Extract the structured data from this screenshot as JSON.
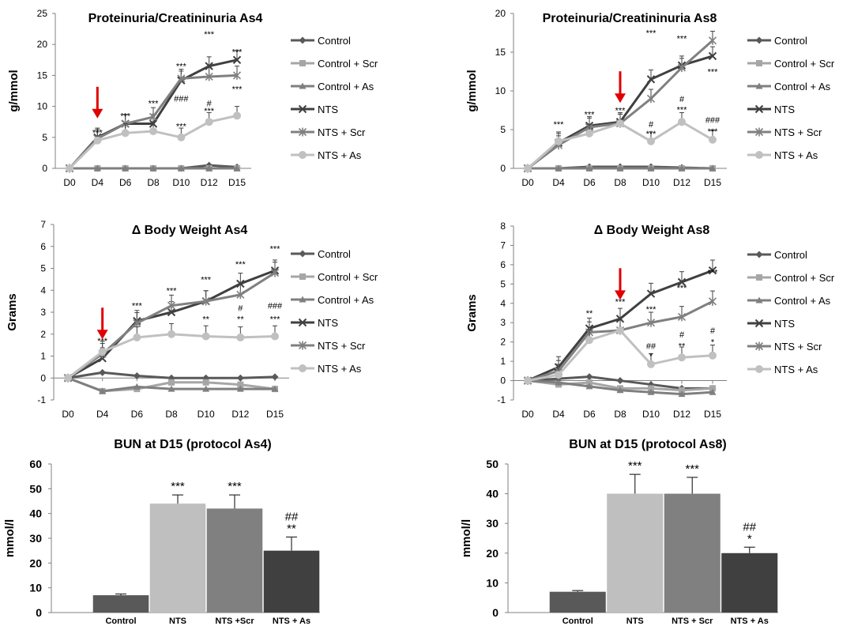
{
  "chart_data": [
    {
      "type": "line",
      "title": "Proteinuria/Creatininuria As4",
      "ylabel": "g/mmol",
      "categories": [
        "D0",
        "D4",
        "D6",
        "D8",
        "D10",
        "D12",
        "D15"
      ],
      "ylim": [
        0,
        25
      ],
      "yticks": [
        0,
        5,
        10,
        15,
        20,
        25
      ],
      "arrow_at": "D4",
      "series": [
        {
          "name": "Control",
          "values": [
            0,
            0,
            0,
            0,
            0,
            0.5,
            0.2
          ]
        },
        {
          "name": "Control + Scr",
          "values": [
            0,
            0,
            0,
            0,
            0,
            0,
            0
          ]
        },
        {
          "name": "Control + As",
          "values": [
            0,
            0,
            0,
            0,
            0,
            0,
            0
          ]
        },
        {
          "name": "NTS",
          "values": [
            0,
            5,
            7.2,
            7.2,
            14.2,
            16.5,
            17.5
          ]
        },
        {
          "name": "NTS + Scr",
          "values": [
            0,
            4.8,
            7.2,
            8.3,
            14.5,
            14.8,
            15
          ]
        },
        {
          "name": "NTS + As",
          "values": [
            0,
            4.5,
            5.7,
            6,
            5,
            7.5,
            8.5
          ]
        }
      ],
      "annotations": [
        {
          "x": "D4",
          "y": 5.8,
          "text": "***"
        },
        {
          "x": "D6",
          "y": 8.5,
          "text": "***"
        },
        {
          "x": "D8",
          "y": 10.5,
          "text": "***"
        },
        {
          "x": "D10",
          "y": 16.5,
          "text": "***"
        },
        {
          "x": "D10",
          "y": 11.3,
          "text": "###"
        },
        {
          "x": "D10",
          "y": 6.8,
          "text": "***"
        },
        {
          "x": "D12",
          "y": 21.7,
          "text": "***"
        },
        {
          "x": "D12",
          "y": 10.5,
          "text": "#"
        },
        {
          "x": "D12",
          "y": 9.3,
          "text": "***"
        },
        {
          "x": "D15",
          "y": 18.8,
          "text": "***"
        },
        {
          "x": "D15",
          "y": 12.8,
          "text": "***"
        }
      ]
    },
    {
      "type": "line",
      "title": "Proteinuria/Creatininuria As8",
      "ylabel": "g/mmol",
      "categories": [
        "D0",
        "D4",
        "D6",
        "D8",
        "D10",
        "D12",
        "D15"
      ],
      "ylim": [
        0,
        20
      ],
      "yticks": [
        0,
        5,
        10,
        15,
        20
      ],
      "arrow_at": "D8",
      "series": [
        {
          "name": "Control",
          "values": [
            0,
            0,
            0.2,
            0.2,
            0.2,
            0.1,
            0
          ]
        },
        {
          "name": "Control + Scr",
          "values": [
            0,
            0,
            0,
            0,
            0,
            0,
            0
          ]
        },
        {
          "name": "Control + As",
          "values": [
            0,
            0,
            0,
            0,
            0,
            0,
            0
          ]
        },
        {
          "name": "NTS",
          "values": [
            0,
            3.3,
            5.5,
            6,
            11.5,
            13.3,
            14.5
          ]
        },
        {
          "name": "NTS + Scr",
          "values": [
            0,
            3,
            5.3,
            5.8,
            9,
            13,
            16.5
          ]
        },
        {
          "name": "NTS + As",
          "values": [
            0,
            3.5,
            4.5,
            5.8,
            3.5,
            6,
            3.7
          ]
        }
      ],
      "annotations": [
        {
          "x": "D4",
          "y": 5.7,
          "text": "***"
        },
        {
          "x": "D6",
          "y": 7.0,
          "text": "***"
        },
        {
          "x": "D8",
          "y": 7.5,
          "text": "***"
        },
        {
          "x": "D10",
          "y": 17.5,
          "text": "***"
        },
        {
          "x": "D10",
          "y": 5.7,
          "text": "#"
        },
        {
          "x": "D10",
          "y": 4.5,
          "text": "***"
        },
        {
          "x": "D12",
          "y": 16.8,
          "text": "***"
        },
        {
          "x": "D12",
          "y": 9.0,
          "text": "#"
        },
        {
          "x": "D12",
          "y": 7.6,
          "text": "***"
        },
        {
          "x": "D15",
          "y": 12.5,
          "text": "***"
        },
        {
          "x": "D15",
          "y": 6.3,
          "text": "###"
        },
        {
          "x": "D15",
          "y": 4.8,
          "text": "***"
        }
      ]
    },
    {
      "type": "line",
      "title": "Δ Body Weight As4",
      "ylabel": "Grams",
      "categories": [
        "D0",
        "D4",
        "D6",
        "D8",
        "D10",
        "D12",
        "D15"
      ],
      "ylim": [
        -1,
        7
      ],
      "yticks": [
        -1,
        0,
        1,
        2,
        3,
        4,
        5,
        6,
        7
      ],
      "arrow_at": "D4",
      "series": [
        {
          "name": "Control",
          "values": [
            0,
            0.25,
            0.1,
            0,
            0,
            0,
            0.05
          ]
        },
        {
          "name": "Control + Scr",
          "values": [
            0,
            -0.6,
            -0.5,
            -0.2,
            -0.2,
            -0.3,
            -0.5
          ]
        },
        {
          "name": "Control + As",
          "values": [
            0,
            -0.6,
            -0.4,
            -0.5,
            -0.5,
            -0.5,
            -0.5
          ]
        },
        {
          "name": "NTS",
          "values": [
            0,
            0.9,
            2.6,
            3.0,
            3.5,
            4.3,
            4.9
          ]
        },
        {
          "name": "NTS + Scr",
          "values": [
            0,
            1.1,
            2.5,
            3.3,
            3.5,
            3.8,
            4.8
          ]
        },
        {
          "name": "NTS + As",
          "values": [
            0,
            1.2,
            1.85,
            2.0,
            1.9,
            1.85,
            1.9
          ]
        }
      ],
      "annotations": [
        {
          "x": "D4",
          "y": 1.7,
          "text": "***"
        },
        {
          "x": "D6",
          "y": 3.3,
          "text": "***"
        },
        {
          "x": "D8",
          "y": 4.0,
          "text": "***"
        },
        {
          "x": "D10",
          "y": 4.5,
          "text": "***"
        },
        {
          "x": "D10",
          "y": 2.7,
          "text": "**"
        },
        {
          "x": "D12",
          "y": 5.2,
          "text": "***"
        },
        {
          "x": "D12",
          "y": 3.2,
          "text": "#"
        },
        {
          "x": "D12",
          "y": 2.7,
          "text": "**"
        },
        {
          "x": "D15",
          "y": 5.9,
          "text": "***"
        },
        {
          "x": "D15",
          "y": 3.3,
          "text": "###"
        },
        {
          "x": "D15",
          "y": 2.7,
          "text": "***"
        }
      ]
    },
    {
      "type": "line",
      "title": "Δ Body Weight As8",
      "ylabel": "Grams",
      "categories": [
        "D0",
        "D4",
        "D6",
        "D8",
        "D10",
        "D12",
        "D15"
      ],
      "ylim": [
        -1,
        8
      ],
      "yticks": [
        -1,
        0,
        1,
        2,
        3,
        4,
        5,
        6,
        7,
        8
      ],
      "arrow_at": "D8",
      "series": [
        {
          "name": "Control",
          "values": [
            0,
            0.1,
            0.2,
            0,
            -0.2,
            -0.4,
            -0.4
          ]
        },
        {
          "name": "Control + Scr",
          "values": [
            0,
            -0.2,
            -0.1,
            -0.4,
            -0.4,
            -0.5,
            -0.4
          ]
        },
        {
          "name": "Control + As",
          "values": [
            0,
            -0.1,
            -0.3,
            -0.5,
            -0.6,
            -0.7,
            -0.6
          ]
        },
        {
          "name": "NTS",
          "values": [
            0,
            0.7,
            2.7,
            3.2,
            4.5,
            5.1,
            5.7
          ]
        },
        {
          "name": "NTS + Scr",
          "values": [
            0,
            0.5,
            2.5,
            2.6,
            3.0,
            3.3,
            4.1
          ]
        },
        {
          "name": "NTS + As",
          "values": [
            0,
            0.3,
            2.1,
            2.6,
            0.85,
            1.2,
            1.3
          ]
        }
      ],
      "annotations": [
        {
          "x": "D6",
          "y": 3.5,
          "text": "**"
        },
        {
          "x": "D8",
          "y": 4.1,
          "text": "***"
        },
        {
          "x": "D10",
          "y": 3.7,
          "text": "***"
        },
        {
          "x": "D10",
          "y": 1.8,
          "text": "##"
        },
        {
          "x": "D10",
          "y": 1.3,
          "text": "*"
        },
        {
          "x": "D12",
          "y": 4.8,
          "text": "***"
        },
        {
          "x": "D12",
          "y": 2.4,
          "text": "#"
        },
        {
          "x": "D12",
          "y": 1.8,
          "text": "**"
        },
        {
          "x": "D15",
          "y": 5.6,
          "text": "***"
        },
        {
          "x": "D15",
          "y": 2.6,
          "text": "#"
        },
        {
          "x": "D15",
          "y": 2.0,
          "text": "*"
        }
      ]
    },
    {
      "type": "bar",
      "title": "BUN at D15 (protocol As4)",
      "ylabel": "mmol/l",
      "categories": [
        "Control",
        "NTS",
        "NTS +Scr",
        "NTS + As"
      ],
      "values": [
        7,
        44,
        42,
        25
      ],
      "errors": [
        0.5,
        3.5,
        5.5,
        5.5
      ],
      "ylim": [
        0,
        60
      ],
      "yticks": [
        0,
        10,
        20,
        30,
        40,
        50,
        60
      ],
      "colors": [
        "#595959",
        "#bfbfbf",
        "#808080",
        "#404040"
      ],
      "annotations": [
        {
          "category": "NTS",
          "lines": [
            "***"
          ]
        },
        {
          "category": "NTS +Scr",
          "lines": [
            "***"
          ]
        },
        {
          "category": "NTS + As",
          "lines": [
            "##",
            "**"
          ]
        }
      ]
    },
    {
      "type": "bar",
      "title": "BUN at D15 (protocol As8)",
      "ylabel": "mmol/l",
      "categories": [
        "Control",
        "NTS",
        "NTS + Scr",
        "NTS + As"
      ],
      "values": [
        7,
        40,
        40,
        20
      ],
      "errors": [
        0.4,
        6.5,
        5.5,
        2
      ],
      "ylim": [
        0,
        50
      ],
      "yticks": [
        0,
        10,
        20,
        30,
        40,
        50
      ],
      "colors": [
        "#595959",
        "#bfbfbf",
        "#808080",
        "#404040"
      ],
      "annotations": [
        {
          "category": "NTS",
          "lines": [
            "***"
          ]
        },
        {
          "category": "NTS + Scr",
          "lines": [
            "***"
          ]
        },
        {
          "category": "NTS + As",
          "lines": [
            "##",
            "*"
          ]
        }
      ]
    }
  ],
  "styles": {
    "Control": {
      "color": "#595959",
      "marker": "diamond"
    },
    "Control + Scr": {
      "color": "#a6a6a6",
      "marker": "square"
    },
    "Control + As": {
      "color": "#7f7f7f",
      "marker": "triangle"
    },
    "NTS": {
      "color": "#404040",
      "marker": "x"
    },
    "NTS + Scr": {
      "color": "#808080",
      "marker": "star"
    },
    "NTS + As": {
      "color": "#c0c0c0",
      "marker": "circle"
    },
    "arrow": "#e00000"
  }
}
